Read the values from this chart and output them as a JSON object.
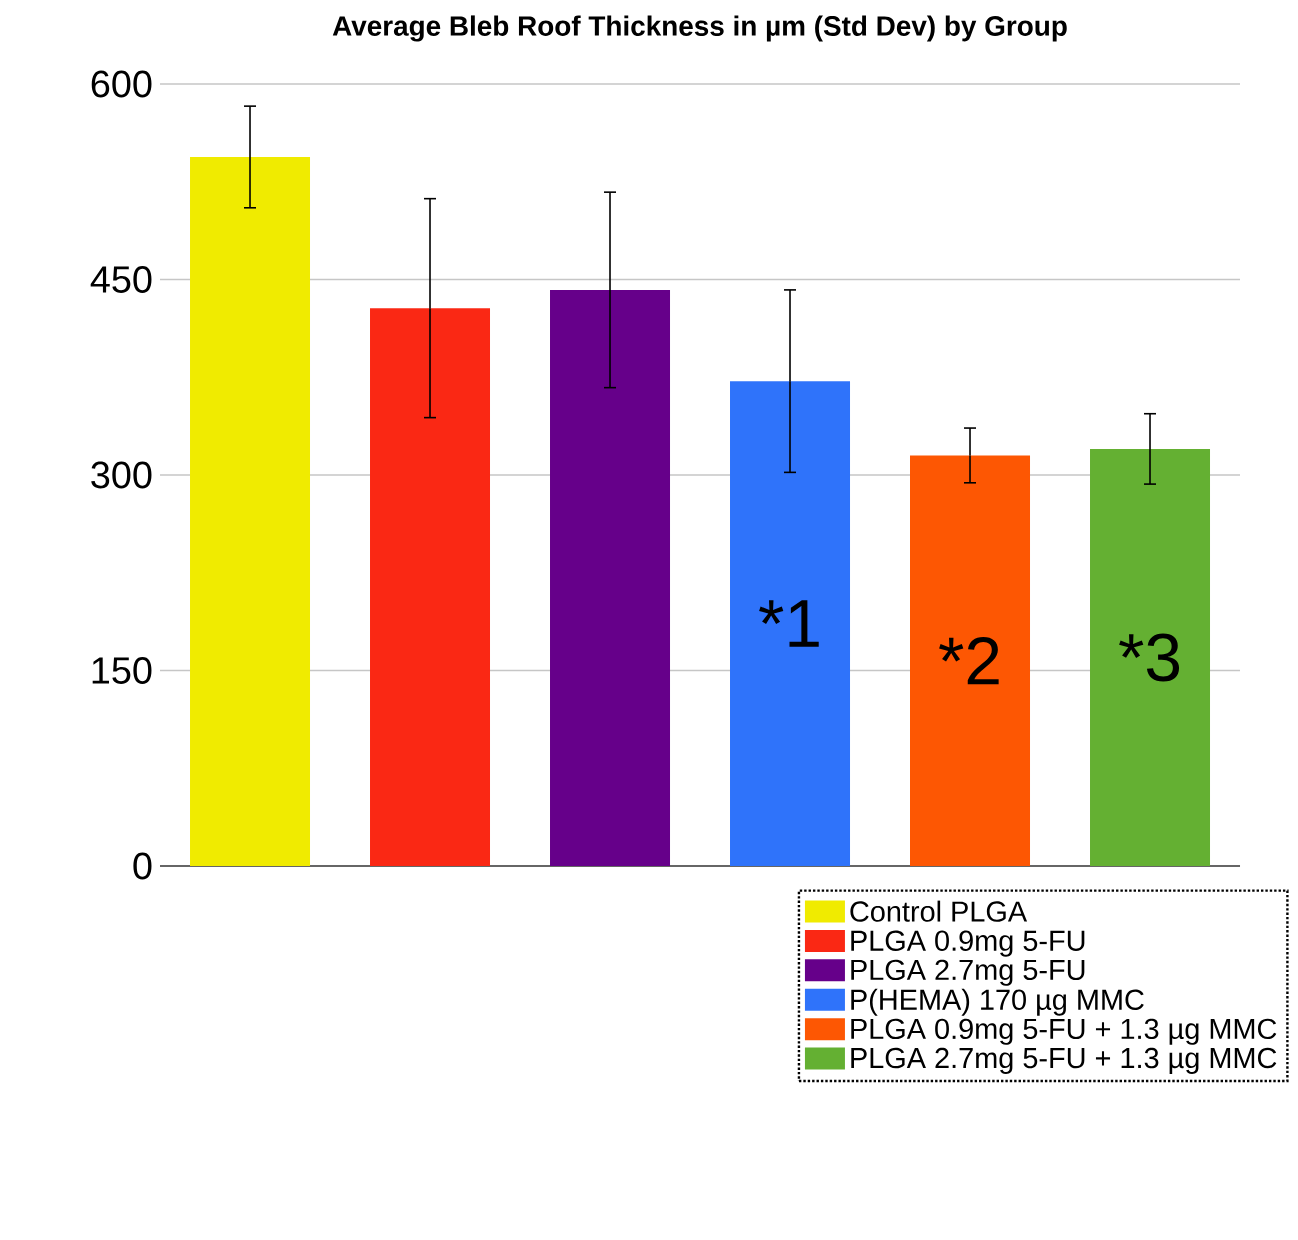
{
  "chart_data": {
    "type": "bar",
    "title": "Average Bleb Roof Thickness in µm (Std Dev) by Group",
    "categories": [
      null,
      null,
      null,
      null,
      null,
      null
    ],
    "series": [
      {
        "name": "Control PLGA",
        "color": "#f0eb00",
        "values": [
          544,
          null,
          null,
          null,
          null,
          null
        ],
        "errors": [
          39,
          null,
          null,
          null,
          null,
          null
        ]
      },
      {
        "name": "PLGA 0.9mg 5-FU",
        "color": "#fa2814",
        "values": [
          null,
          428,
          null,
          null,
          null,
          null
        ],
        "errors": [
          null,
          84,
          null,
          null,
          null,
          null
        ]
      },
      {
        "name": "PLGA 2.7mg 5-FU",
        "color": "#66008a",
        "values": [
          null,
          null,
          442,
          null,
          null,
          null
        ],
        "errors": [
          null,
          null,
          75,
          null,
          null,
          null
        ]
      },
      {
        "name": "P(HEMA) 170 µg MMC",
        "color": "#2f73fa",
        "values": [
          null,
          null,
          null,
          372,
          null,
          null
        ],
        "errors": [
          null,
          null,
          null,
          70,
          null,
          null
        ]
      },
      {
        "name": "PLGA 0.9mg 5-FU + 1.3 µg MMC",
        "color": "#fd5703",
        "values": [
          null,
          null,
          null,
          null,
          315,
          null
        ],
        "errors": [
          null,
          null,
          null,
          null,
          21,
          null
        ]
      },
      {
        "name": "PLGA 2.7mg 5-FU + 1.3 µg MMC",
        "color": "#64b032",
        "values": [
          null,
          null,
          null,
          null,
          null,
          320
        ],
        "errors": [
          null,
          null,
          null,
          null,
          null,
          27
        ]
      }
    ],
    "ylim": [
      0,
      600
    ],
    "yticks": [
      0,
      150,
      300,
      450,
      600
    ],
    "grid": "y",
    "legend": "bottom right",
    "tick_labels": "y",
    "annotations": [
      "*1",
      "*2",
      "*3"
    ]
  }
}
